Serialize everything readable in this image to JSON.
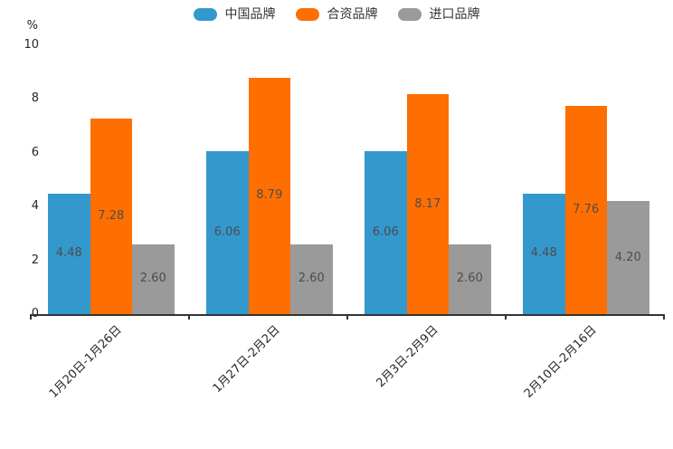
{
  "legend": {
    "items": [
      {
        "label": "中国品牌",
        "color": "#3398CC"
      },
      {
        "label": "合资品牌",
        "color": "#FF6E00"
      },
      {
        "label": "进口品牌",
        "color": "#9A9A9A"
      }
    ]
  },
  "chart_data": {
    "type": "bar",
    "title": "",
    "unit_label": "%",
    "categories": [
      "1月20日-1月26日",
      "1月27日-2月2日",
      "2月3日-2月9日",
      "2月10日-2月16日"
    ],
    "series": [
      {
        "name": "中国品牌",
        "color": "#3398CC",
        "values": [
          4.48,
          6.06,
          6.06,
          4.48
        ]
      },
      {
        "name": "合资品牌",
        "color": "#FF6E00",
        "values": [
          7.28,
          8.79,
          8.17,
          7.76
        ]
      },
      {
        "name": "进口品牌",
        "color": "#9A9A9A",
        "values": [
          2.6,
          2.6,
          2.6,
          4.2
        ]
      }
    ],
    "value_labels_decimals": 2,
    "ylim": [
      0,
      10
    ],
    "yticks": [
      0,
      2,
      4,
      6,
      8,
      10
    ],
    "grid": false,
    "legend_position": "top-center",
    "x_label_rotation": 45
  },
  "colors": {
    "axis": "#333333",
    "tick_label": "#262626",
    "value_label": "#4D4D4D",
    "background": "#FFFFFF"
  }
}
